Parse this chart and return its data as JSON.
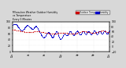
{
  "title": "Milwaukee Weather Outdoor Humidity vs Temperature Every 5 Minutes",
  "bg_color": "#d8d8d8",
  "plot_bg_color": "#ffffff",
  "humidity_color": "#0000cc",
  "temp_color": "#cc0000",
  "legend_humidity": "Humidity",
  "legend_temp": "Outdoor Temp",
  "ylim_left": [
    0,
    100
  ],
  "ylim_right": [
    -20,
    100
  ],
  "n_points": 288,
  "humidity_x": [
    0,
    1,
    2,
    3,
    4,
    5,
    6,
    7,
    8,
    9,
    10,
    11,
    12,
    13,
    14,
    15,
    16,
    17,
    18,
    19,
    20,
    21,
    22,
    23,
    24,
    25,
    26,
    27,
    28,
    29,
    30,
    31,
    32,
    33,
    34,
    35,
    36,
    37,
    38,
    39,
    40,
    41,
    42,
    43,
    44,
    45,
    46,
    47,
    48,
    49,
    50,
    51,
    52,
    53,
    54,
    55,
    56,
    57,
    58,
    59,
    60,
    61,
    62,
    63,
    64,
    65,
    66,
    67,
    68,
    69,
    70,
    71,
    72,
    73,
    74,
    75,
    76,
    77,
    78,
    79,
    80,
    81,
    82,
    83,
    84,
    85,
    86,
    87,
    88,
    89,
    90,
    91,
    92,
    93,
    94,
    95,
    96,
    97,
    98,
    99,
    100,
    101,
    102,
    103,
    104,
    105,
    106,
    107,
    108,
    109,
    110,
    111,
    112,
    113,
    114,
    115,
    116,
    117,
    118,
    119,
    120,
    121,
    122,
    123,
    124,
    125,
    126,
    127,
    128,
    129,
    130,
    131,
    132,
    133,
    134,
    135,
    136,
    137,
    138,
    139,
    140,
    141,
    142,
    143,
    144,
    145,
    146,
    147,
    148,
    149,
    150,
    151,
    152,
    153,
    154,
    155,
    156,
    157,
    158,
    159,
    160,
    161,
    162,
    163,
    164,
    165,
    166,
    167,
    168,
    169,
    170,
    171,
    172,
    173,
    174,
    175,
    176,
    177,
    178,
    179,
    180,
    181,
    182,
    183,
    184,
    185,
    186,
    187,
    188,
    189,
    190,
    191,
    192,
    193,
    194,
    195,
    196,
    197,
    198,
    199,
    200,
    201,
    202,
    203,
    204,
    205,
    206,
    207,
    208,
    209,
    210,
    211,
    212,
    213,
    214,
    215,
    216,
    217,
    218,
    219,
    220,
    221,
    222,
    223,
    224,
    225,
    226,
    227,
    228,
    229,
    230,
    231,
    232,
    233,
    234,
    235,
    236,
    237,
    238,
    239,
    240,
    241,
    242,
    243,
    244,
    245,
    246,
    247,
    248,
    249,
    250,
    251,
    252,
    253,
    254,
    255,
    256,
    257,
    258,
    259,
    260,
    261,
    262,
    263,
    264,
    265,
    266,
    267,
    268,
    269,
    270,
    271,
    272,
    273,
    274,
    275,
    276,
    277,
    278,
    279,
    280,
    281,
    282,
    283,
    284,
    285,
    286,
    287
  ],
  "humidity_vals": [
    90,
    90,
    91,
    91,
    91,
    92,
    92,
    93,
    93,
    93,
    92,
    91,
    90,
    89,
    87,
    85,
    84,
    82,
    80,
    78,
    77,
    76,
    75,
    74,
    73,
    72,
    72,
    72,
    72,
    72,
    73,
    74,
    75,
    76,
    77,
    79,
    80,
    82,
    83,
    85,
    86,
    87,
    88,
    88,
    88,
    88,
    87,
    86,
    85,
    84,
    83,
    82,
    81,
    80,
    79,
    78,
    77,
    76,
    76,
    76,
    76,
    77,
    78,
    79,
    81,
    82,
    84,
    85,
    86,
    86,
    85,
    84,
    82,
    80,
    78,
    76,
    74,
    72,
    70,
    68,
    66,
    64,
    62,
    60,
    58,
    56,
    54,
    52,
    50,
    49,
    48,
    48,
    48,
    48,
    49,
    50,
    51,
    52,
    54,
    56,
    58,
    60,
    62,
    64,
    65,
    66,
    66,
    65,
    64,
    62,
    60,
    58,
    56,
    54,
    52,
    50,
    49,
    48,
    48,
    49,
    51,
    53,
    55,
    57,
    59,
    61,
    63,
    65,
    67,
    68,
    68,
    67,
    65,
    62,
    59,
    56,
    53,
    50,
    47,
    45,
    43,
    42,
    42,
    43,
    44,
    46,
    48,
    50,
    52,
    54,
    56,
    58,
    59,
    60,
    60,
    59,
    58,
    57,
    56,
    55,
    55,
    55,
    56,
    57,
    59,
    61,
    63,
    65,
    67,
    68,
    69,
    69,
    68,
    66,
    64,
    62,
    60,
    58,
    57,
    56,
    56,
    56,
    57,
    58,
    60,
    62,
    64,
    66,
    68,
    69,
    70,
    70,
    69,
    67,
    65,
    63,
    61,
    59,
    58,
    57,
    57,
    58,
    59,
    61,
    63,
    65,
    67,
    68,
    69,
    69,
    68,
    67,
    65,
    63,
    61,
    60,
    59,
    59,
    60,
    61,
    63,
    65,
    67,
    68,
    69,
    69,
    68,
    66,
    64,
    62,
    60,
    59,
    58,
    58,
    59,
    60,
    62,
    64,
    66,
    68,
    70,
    71,
    71,
    70,
    68,
    66,
    64,
    62,
    60,
    59,
    59,
    60,
    61,
    63,
    65,
    67,
    68,
    69,
    69,
    68,
    66,
    64,
    62,
    61,
    60,
    60,
    61,
    62,
    64,
    66,
    68,
    69,
    70,
    70,
    69,
    67,
    65,
    63,
    61,
    60,
    60,
    61,
    63,
    65,
    67,
    69,
    70,
    70
  ],
  "temp_x": [
    0,
    4,
    8,
    12,
    16,
    20,
    24,
    28,
    32,
    36,
    40,
    44,
    48,
    52,
    56,
    60,
    64,
    68,
    72,
    76,
    80,
    84,
    88,
    92,
    96,
    100,
    104,
    108,
    112,
    116,
    120,
    124,
    128,
    132,
    136,
    140,
    144,
    148,
    152,
    156,
    160,
    164,
    168,
    172,
    176,
    180,
    184,
    188,
    192,
    196,
    200,
    204,
    208,
    212,
    216,
    220,
    224,
    228,
    232,
    236,
    240,
    244,
    248,
    252,
    256,
    260,
    264,
    268,
    272,
    276,
    280,
    284
  ],
  "temp_vals": [
    68,
    68,
    67,
    66,
    65,
    64,
    63,
    62,
    61,
    60,
    59,
    58,
    58,
    58,
    59,
    60,
    61,
    62,
    62,
    62,
    61,
    60,
    59,
    58,
    57,
    56,
    55,
    54,
    53,
    52,
    52,
    52,
    53,
    54,
    55,
    56,
    57,
    57,
    57,
    56,
    55,
    54,
    53,
    52,
    52,
    52,
    53,
    54,
    56,
    58,
    60,
    61,
    62,
    62,
    61,
    60,
    59,
    58,
    57,
    56,
    56,
    57,
    58,
    60,
    62,
    63,
    64,
    64,
    63,
    62,
    60,
    59
  ],
  "x_range": [
    0,
    287
  ],
  "left_yticks": [
    0,
    20,
    40,
    60,
    80,
    100
  ],
  "right_yticks": [
    -20,
    0,
    20,
    40,
    60,
    80,
    100
  ],
  "x_tick_pos": [
    0,
    48,
    96,
    144,
    192,
    240,
    287
  ],
  "x_tick_labels": [
    "12a",
    "4a",
    "8a",
    "12p",
    "4p",
    "8p",
    "12a"
  ],
  "dot_size": 0.4
}
